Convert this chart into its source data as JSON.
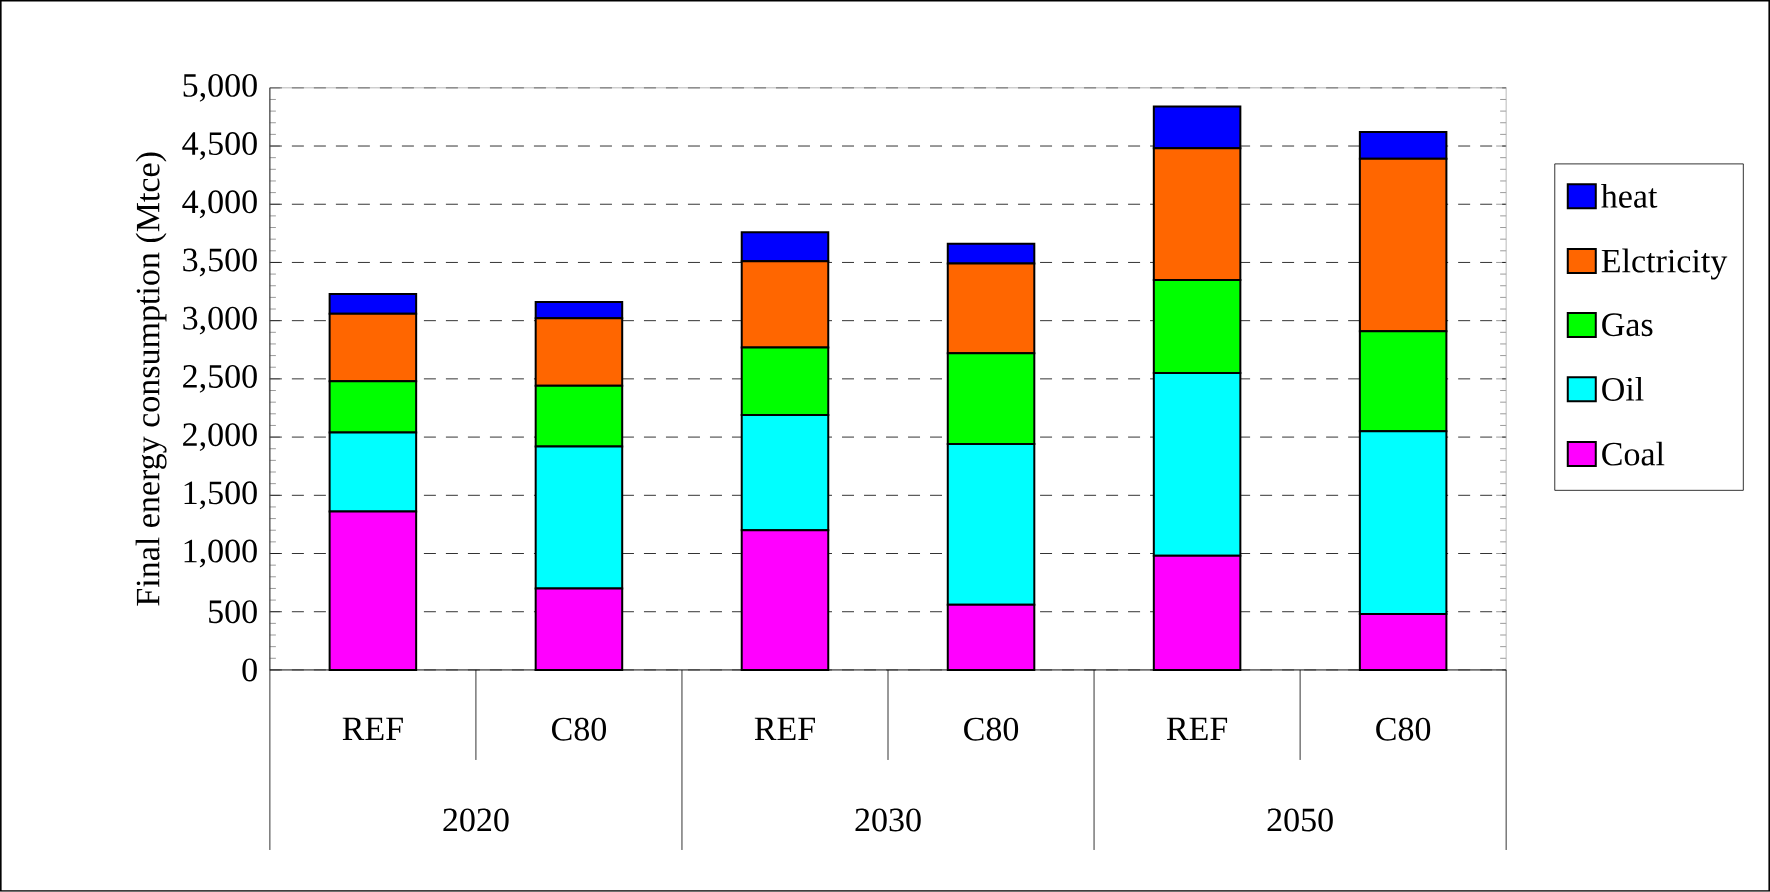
{
  "chart_data": {
    "type": "bar",
    "stacked": true,
    "ylabel": "Final energy consumption (Mtce)",
    "categories": [
      "REF",
      "C80",
      "REF",
      "C80",
      "REF",
      "C80"
    ],
    "series": [
      {
        "name": "Coal",
        "color": "#ff00ff",
        "values": [
          1360,
          700,
          1200,
          560,
          980,
          480
        ]
      },
      {
        "name": "Oil",
        "color": "#00ffff",
        "values": [
          680,
          1220,
          990,
          1380,
          1570,
          1570
        ]
      },
      {
        "name": "Gas",
        "color": "#00ff00",
        "values": [
          440,
          520,
          580,
          780,
          800,
          860
        ]
      },
      {
        "name": "Elctricity",
        "color": "#ff6600",
        "values": [
          580,
          580,
          740,
          770,
          1130,
          1480
        ]
      },
      {
        "name": "heat",
        "color": "#0000ff",
        "values": [
          170,
          140,
          250,
          170,
          360,
          230
        ]
      }
    ],
    "ylim": [
      0,
      5000
    ],
    "yticks": [
      0,
      500,
      {
        "value": 1000,
        "label": "1,000"
      },
      {
        "value": 1500,
        "label": "1,500"
      },
      {
        "value": 2000,
        "label": "2,000"
      },
      {
        "value": 2500,
        "label": "2,500"
      },
      {
        "value": 3000,
        "label": "3,000"
      },
      {
        "value": 3500,
        "label": "3,500"
      },
      {
        "value": 4000,
        "label": "4,000"
      },
      {
        "value": 4500,
        "label": "4,500"
      },
      {
        "value": 5000,
        "label": "5,000"
      }
    ],
    "grid": "y",
    "legend": "right",
    "annotations": [
      "2020",
      "2030",
      "2050"
    ]
  }
}
